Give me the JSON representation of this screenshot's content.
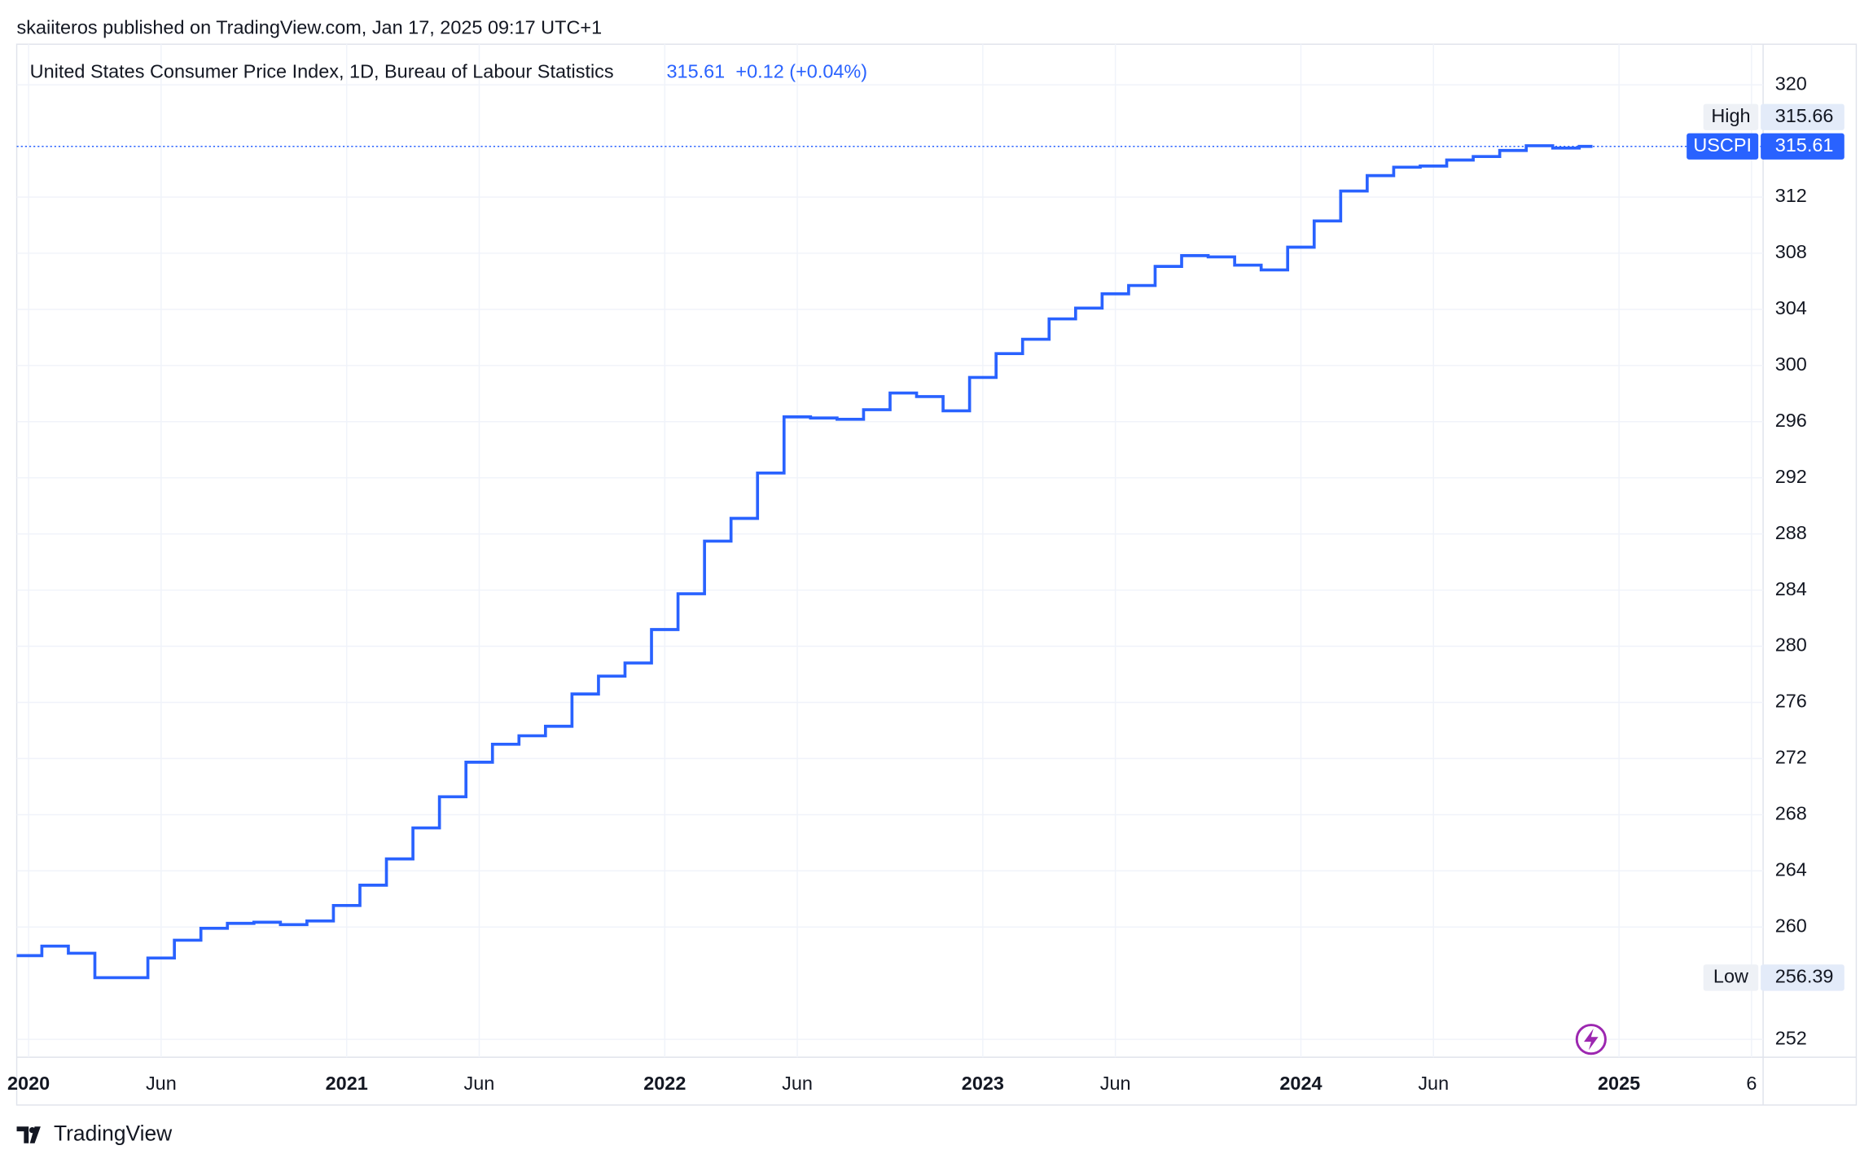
{
  "page": {
    "byline": "skaiiteros published on TradingView.com, Jan 17, 2025 09:17 UTC+1",
    "brand": "TradingView"
  },
  "chart_data": {
    "type": "step-line",
    "title": "United States Consumer Price Index, 1D, Bureau of Labour Statistics",
    "last_value": "315.61",
    "change": "+0.12 (+0.04%)",
    "price_labels": [
      {
        "name": "High",
        "value": "315.66"
      },
      {
        "name": "USCPI",
        "value": "315.61"
      },
      {
        "name": "Low",
        "value": "256.39"
      }
    ],
    "x": [
      "2019-12",
      "2020-01",
      "2020-02",
      "2020-03",
      "2020-04",
      "2020-05",
      "2020-06",
      "2020-07",
      "2020-08",
      "2020-09",
      "2020-10",
      "2020-11",
      "2020-12",
      "2021-01",
      "2021-02",
      "2021-03",
      "2021-04",
      "2021-05",
      "2021-06",
      "2021-07",
      "2021-08",
      "2021-09",
      "2021-10",
      "2021-11",
      "2021-12",
      "2022-01",
      "2022-02",
      "2022-03",
      "2022-04",
      "2022-05",
      "2022-06",
      "2022-07",
      "2022-08",
      "2022-09",
      "2022-10",
      "2022-11",
      "2022-12",
      "2023-01",
      "2023-02",
      "2023-03",
      "2023-04",
      "2023-05",
      "2023-06",
      "2023-07",
      "2023-08",
      "2023-09",
      "2023-10",
      "2023-11",
      "2023-12",
      "2024-01",
      "2024-02",
      "2024-03",
      "2024-04",
      "2024-05",
      "2024-06",
      "2024-07",
      "2024-08",
      "2024-09",
      "2024-10",
      "2024-11"
    ],
    "values": [
      257.96,
      258.64,
      258.13,
      256.39,
      256.39,
      257.79,
      259.06,
      259.91,
      260.26,
      260.34,
      260.17,
      260.43,
      261.53,
      262.98,
      264.85,
      267.06,
      269.28,
      271.74,
      273.02,
      273.62,
      274.3,
      276.6,
      277.87,
      278.81,
      281.19,
      283.74,
      287.49,
      289.11,
      292.34,
      296.34,
      296.26,
      296.17,
      296.85,
      298.04,
      297.79,
      296.77,
      299.15,
      300.85,
      301.87,
      303.32,
      304.09,
      305.11,
      305.7,
      307.06,
      307.83,
      307.74,
      307.15,
      306.81,
      308.43,
      310.3,
      312.43,
      313.53,
      314.13,
      314.21,
      314.64,
      314.89,
      315.32,
      315.66,
      315.49,
      315.61
    ],
    "color": "#2962ff",
    "xlim": [
      "2019-12",
      "2025-07"
    ],
    "xticks": [
      {
        "value": "2020-01",
        "label": "2020"
      },
      {
        "value": "2020-06",
        "label": "Jun"
      },
      {
        "value": "2021-01",
        "label": "2021"
      },
      {
        "value": "2021-06",
        "label": "Jun"
      },
      {
        "value": "2022-01",
        "label": "2022"
      },
      {
        "value": "2022-06",
        "label": "Jun"
      },
      {
        "value": "2023-01",
        "label": "2023"
      },
      {
        "value": "2023-06",
        "label": "Jun"
      },
      {
        "value": "2024-01",
        "label": "2024"
      },
      {
        "value": "2024-06",
        "label": "Jun"
      },
      {
        "value": "2025-01",
        "label": "2025"
      },
      {
        "value": "2025-06",
        "label": "6"
      }
    ],
    "ylim": [
      250.72,
      322.89
    ],
    "yticks": [
      252,
      260,
      264,
      268,
      272,
      276,
      280,
      284,
      288,
      292,
      296,
      300,
      304,
      308,
      312,
      320
    ],
    "grid": true
  }
}
